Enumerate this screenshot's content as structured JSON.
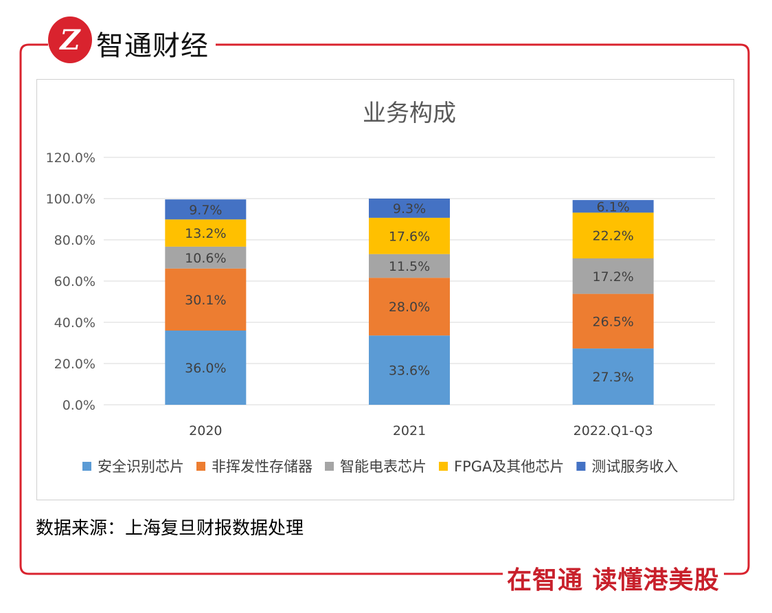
{
  "header": {
    "brand": "智通财经",
    "logo_letter": "Z"
  },
  "footer": {
    "source": "数据来源：上海复旦财报数据处理",
    "slogan": "在智通 读懂港美股"
  },
  "colors": {
    "frame": "#d9232e"
  },
  "chart_data": {
    "type": "bar",
    "stacked": true,
    "title": "业务构成",
    "categories": [
      "2020",
      "2021",
      "2022.Q1-Q3"
    ],
    "ylim": [
      0,
      120
    ],
    "yticks": [
      "0.0%",
      "20.0%",
      "40.0%",
      "60.0%",
      "80.0%",
      "100.0%",
      "120.0%"
    ],
    "ytick_values": [
      0,
      20,
      40,
      60,
      80,
      100,
      120
    ],
    "grid": true,
    "legend_position": "bottom",
    "series": [
      {
        "name": "安全识别芯片",
        "color": "#5B9BD5",
        "values": [
          36.0,
          33.6,
          27.3
        ],
        "labels": [
          "36.0%",
          "33.6%",
          "27.3%"
        ]
      },
      {
        "name": "非挥发性存储器",
        "color": "#ED7D31",
        "values": [
          30.1,
          28.0,
          26.5
        ],
        "labels": [
          "30.1%",
          "28.0%",
          "26.5%"
        ]
      },
      {
        "name": "智能电表芯片",
        "color": "#A5A5A5",
        "values": [
          10.6,
          11.5,
          17.2
        ],
        "labels": [
          "10.6%",
          "11.5%",
          "17.2%"
        ]
      },
      {
        "name": "FPGA及其他芯片",
        "color": "#FFC000",
        "values": [
          13.2,
          17.6,
          22.2
        ],
        "labels": [
          "13.2%",
          "17.6%",
          "22.2%"
        ]
      },
      {
        "name": "测试服务收入",
        "color": "#4472C4",
        "values": [
          9.7,
          9.3,
          6.1
        ],
        "labels": [
          "9.7%",
          "9.3%",
          "6.1%"
        ]
      }
    ]
  }
}
